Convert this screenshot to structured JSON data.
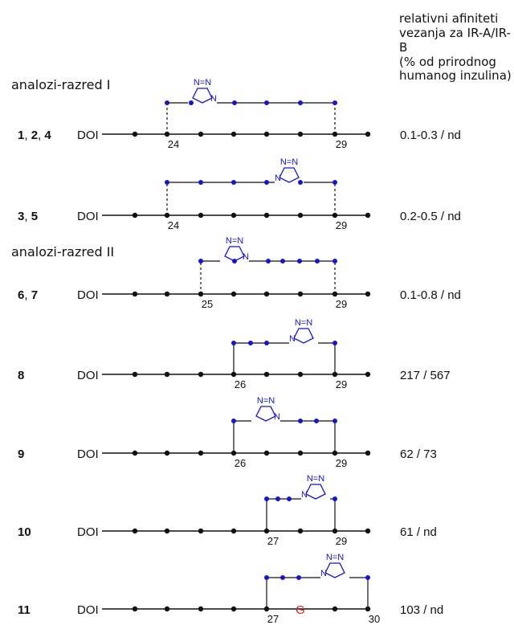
{
  "header": {
    "lines": [
      "relativni afiniteti",
      "vezanja za IR-A/IR-",
      "B",
      "(% od prirodnog",
      "humanog inzulina)"
    ]
  },
  "classes": [
    "analozi-razred I",
    "analozi-razred II"
  ],
  "chain_prefix": "DOI",
  "triazole_label": {
    "nn": "N=N",
    "n": "N"
  },
  "substitution": "G",
  "rows": [
    {
      "compound": [
        "1",
        "2",
        "4"
      ],
      "value": "0.1-0.3 / nd",
      "start_label": "24",
      "end_label": "29"
    },
    {
      "compound": [
        "3",
        "5"
      ],
      "value": "0.2-0.5 / nd",
      "start_label": "24",
      "end_label": "29"
    },
    {
      "compound": [
        "6",
        "7"
      ],
      "value": "0.1-0.8 / nd",
      "start_label": "25",
      "end_label": "29"
    },
    {
      "compound": [
        "8"
      ],
      "value": "217 / 567",
      "start_label": "26",
      "end_label": "29"
    },
    {
      "compound": [
        "9"
      ],
      "value": "62 / 73",
      "start_label": "26",
      "end_label": "29"
    },
    {
      "compound": [
        "10"
      ],
      "value": "61 / nd",
      "start_label": "27",
      "end_label": "29"
    },
    {
      "compound": [
        "11"
      ],
      "value": "103 / nd",
      "start_label": "27",
      "end_label": "30"
    }
  ],
  "colors": {
    "chain": "#111111",
    "linker": "#1515cc",
    "substitution": "#e02020",
    "text": "#111111"
  }
}
